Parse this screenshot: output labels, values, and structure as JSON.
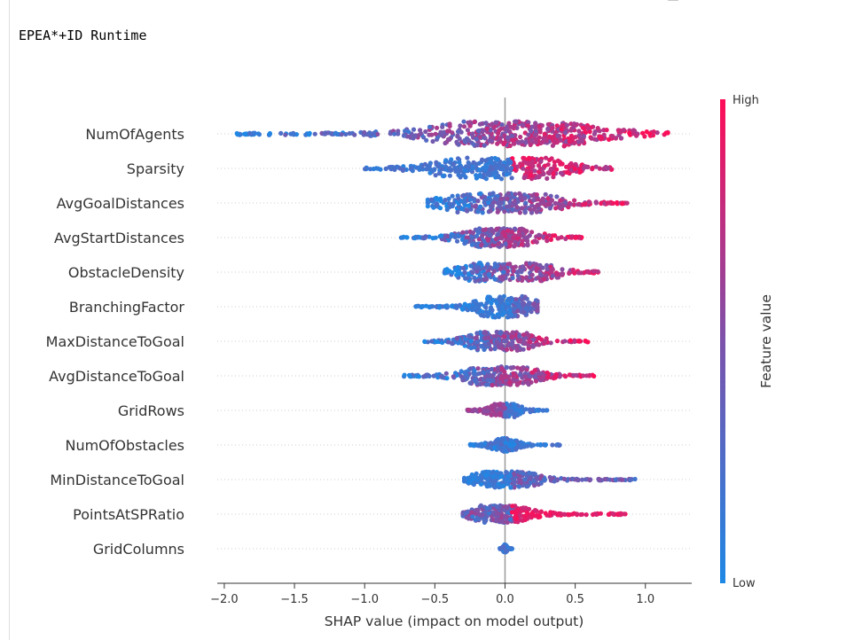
{
  "cell": {
    "output_title": "EPEA*+ID Runtime"
  },
  "icons": {
    "top_icon": "hexagon-icon"
  },
  "colors": {
    "low": "#1e88e5",
    "high": "#ff0d57",
    "zero_line": "#999999",
    "grid": "#cccccc",
    "axis": "#333333"
  },
  "chart_data": {
    "type": "scatter",
    "subtype": "shap-beeswarm",
    "title": "EPEA*+ID Runtime",
    "xlabel": "SHAP value (impact on model output)",
    "ylabel": "",
    "xlim": [
      -2.05,
      1.33
    ],
    "xticks": [
      -2.0,
      -1.5,
      -1.0,
      -0.5,
      0.0,
      0.5,
      1.0
    ],
    "xtick_labels": [
      "−2.0",
      "−1.5",
      "−1.0",
      "−0.5",
      "0.0",
      "0.5",
      "1.0"
    ],
    "grid": "dotted-rows",
    "colorbar": {
      "label": "Feature value",
      "high_label": "High",
      "low_label": "Low",
      "placement": "right"
    },
    "features": [
      {
        "name": "NumOfAgents",
        "min": -1.92,
        "max": 1.16,
        "spread": 1.0,
        "clusters": [
          [
            -0.1,
            0.9
          ],
          [
            0.3,
            0.7
          ]
        ],
        "color_mode": "increasing"
      },
      {
        "name": "Sparsity",
        "min": -1.02,
        "max": 0.76,
        "spread": 0.85,
        "clusters": [
          [
            -0.3,
            0.8
          ],
          [
            0.0,
            1.0
          ],
          [
            0.22,
            0.7
          ]
        ],
        "color_mode": "mixed-high-right"
      },
      {
        "name": "AvgGoalDistances",
        "min": -0.55,
        "max": 0.87,
        "spread": 0.8,
        "clusters": [
          [
            -0.3,
            0.8
          ],
          [
            0.0,
            0.9
          ],
          [
            0.25,
            0.8
          ]
        ],
        "color_mode": "increasing"
      },
      {
        "name": "AvgStartDistances",
        "min": -0.76,
        "max": 0.55,
        "spread": 0.75,
        "clusters": [
          [
            -0.15,
            0.8
          ],
          [
            0.05,
            0.9
          ]
        ],
        "color_mode": "increasing"
      },
      {
        "name": "ObstacleDensity",
        "min": -0.43,
        "max": 0.68,
        "spread": 0.75,
        "clusters": [
          [
            -0.2,
            0.8
          ],
          [
            0.0,
            0.9
          ],
          [
            0.25,
            0.8
          ]
        ],
        "color_mode": "increasing"
      },
      {
        "name": "BranchingFactor",
        "min": -0.64,
        "max": 0.23,
        "spread": 0.85,
        "clusters": [
          [
            -0.1,
            1.0
          ],
          [
            0.12,
            0.9
          ]
        ],
        "color_mode": "low-right"
      },
      {
        "name": "MaxDistanceToGoal",
        "min": -0.58,
        "max": 0.6,
        "spread": 0.75,
        "clusters": [
          [
            -0.1,
            0.9
          ],
          [
            0.05,
            0.9
          ]
        ],
        "color_mode": "increasing"
      },
      {
        "name": "AvgDistanceToGoal",
        "min": -0.73,
        "max": 0.65,
        "spread": 0.75,
        "clusters": [
          [
            -0.1,
            0.9
          ],
          [
            0.05,
            0.9
          ]
        ],
        "color_mode": "increasing"
      },
      {
        "name": "GridRows",
        "min": -0.27,
        "max": 0.3,
        "spread": 0.55,
        "clusters": [
          [
            -0.05,
            0.8
          ],
          [
            0.05,
            0.8
          ]
        ],
        "color_mode": "purple-left"
      },
      {
        "name": "NumOfObstacles",
        "min": -0.26,
        "max": 0.4,
        "spread": 0.55,
        "clusters": [
          [
            0.0,
            1.0
          ]
        ],
        "color_mode": "mostly-low"
      },
      {
        "name": "MinDistanceToGoal",
        "min": -0.29,
        "max": 0.93,
        "spread": 0.65,
        "clusters": [
          [
            -0.05,
            0.9
          ],
          [
            0.05,
            0.9
          ]
        ],
        "color_mode": "low-right"
      },
      {
        "name": "PointsAtSPRatio",
        "min": -0.3,
        "max": 0.87,
        "spread": 0.7,
        "clusters": [
          [
            -0.05,
            0.8
          ],
          [
            0.02,
            1.0
          ]
        ],
        "color_mode": "high-right"
      },
      {
        "name": "GridColumns",
        "min": -0.04,
        "max": 0.05,
        "spread": 0.35,
        "clusters": [
          [
            0.0,
            1.0
          ]
        ],
        "color_mode": "mostly-low"
      }
    ]
  }
}
